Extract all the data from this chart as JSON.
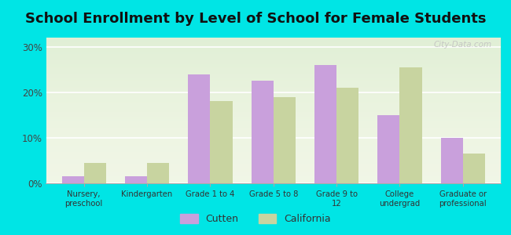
{
  "title": "School Enrollment by Level of School for Female Students",
  "categories": [
    "Nursery,\npreschool",
    "Kindergarten",
    "Grade 1 to 4",
    "Grade 5 to 8",
    "Grade 9 to\n12",
    "College\nundergrad",
    "Graduate or\nprofessional"
  ],
  "cutten": [
    1.5,
    1.5,
    24.0,
    22.5,
    26.0,
    15.0,
    10.0
  ],
  "california": [
    4.5,
    4.5,
    18.0,
    19.0,
    21.0,
    25.5,
    6.5
  ],
  "cutten_color": "#c9a0dc",
  "california_color": "#c8d4a0",
  "ylim": [
    0,
    32
  ],
  "yticks": [
    0,
    10,
    20,
    30
  ],
  "ytick_labels": [
    "0%",
    "10%",
    "20%",
    "30%"
  ],
  "background_color": "#00e5e5",
  "plot_bg_color": "#e8f0d8",
  "title_fontsize": 13,
  "legend_labels": [
    "Cutten",
    "California"
  ],
  "bar_width": 0.35,
  "watermark": "City-Data.com"
}
